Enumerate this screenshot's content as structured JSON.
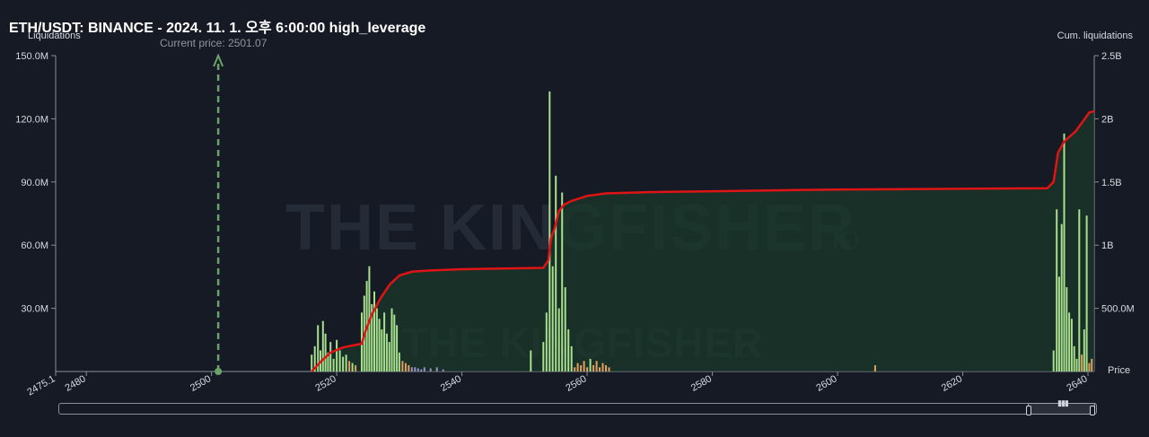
{
  "title": "ETH/USDT: BINANCE - 2024. 11. 1. 오후 6:00:00 high_leverage",
  "y_left_label": "Liquidations",
  "y_right_label": "Cum. liquidations",
  "x_axis_label": "Price",
  "current_price_text": "Current price: 2501.07",
  "watermark_text": "THE KINGFISHER",
  "watermark_suffix": ".IO",
  "colors": {
    "background": "#161a25",
    "bar_green": "#a8e08e",
    "bar_orange": "#e0a060",
    "bar_purple": "#9b8fc9",
    "cumulative_line": "#e01414",
    "area_fill": "#1a3a28",
    "price_marker": "#6aa36a"
  },
  "chart_data": {
    "type": "bar",
    "x_range": [
      2475.1,
      2641
    ],
    "x_ticks": [
      "2475.1",
      "2480",
      "2500",
      "2520",
      "2540",
      "2560",
      "2580",
      "2600",
      "2620",
      "2640"
    ],
    "left_axis": {
      "ylim": [
        0,
        150000000
      ],
      "ticks": [
        "150.0M",
        "120.0M",
        "90.0M",
        "60.0M",
        "30.0M"
      ]
    },
    "right_axis": {
      "ylim": [
        0,
        2500000000
      ],
      "ticks": [
        "2.5B",
        "2B",
        "1.5B",
        "1B",
        "500.0M"
      ]
    },
    "current_price": 2501.07,
    "bars": [
      {
        "x": 2516.0,
        "v": 8.0,
        "c": "g"
      },
      {
        "x": 2516.5,
        "v": 12.0,
        "c": "g"
      },
      {
        "x": 2517.0,
        "v": 22.0,
        "c": "g"
      },
      {
        "x": 2517.4,
        "v": 10.0,
        "c": "g"
      },
      {
        "x": 2517.8,
        "v": 24.0,
        "c": "g"
      },
      {
        "x": 2518.2,
        "v": 18.0,
        "c": "g"
      },
      {
        "x": 2518.6,
        "v": 9.0,
        "c": "g"
      },
      {
        "x": 2519.0,
        "v": 14.0,
        "c": "g"
      },
      {
        "x": 2519.5,
        "v": 6.0,
        "c": "g"
      },
      {
        "x": 2520.0,
        "v": 15.0,
        "c": "g"
      },
      {
        "x": 2520.5,
        "v": 10.0,
        "c": "g"
      },
      {
        "x": 2521.0,
        "v": 7.0,
        "c": "g"
      },
      {
        "x": 2521.5,
        "v": 8.0,
        "c": "g"
      },
      {
        "x": 2522.0,
        "v": 5.0,
        "c": "o"
      },
      {
        "x": 2522.5,
        "v": 4.0,
        "c": "g"
      },
      {
        "x": 2523.0,
        "v": 3.0,
        "c": "o"
      },
      {
        "x": 2524.0,
        "v": 28.0,
        "c": "g"
      },
      {
        "x": 2524.4,
        "v": 36.0,
        "c": "g"
      },
      {
        "x": 2524.8,
        "v": 43.0,
        "c": "g"
      },
      {
        "x": 2525.2,
        "v": 50.0,
        "c": "g"
      },
      {
        "x": 2525.6,
        "v": 32.0,
        "c": "g"
      },
      {
        "x": 2526.0,
        "v": 38.0,
        "c": "g"
      },
      {
        "x": 2526.4,
        "v": 30.0,
        "c": "g"
      },
      {
        "x": 2526.8,
        "v": 25.0,
        "c": "g"
      },
      {
        "x": 2527.2,
        "v": 20.0,
        "c": "g"
      },
      {
        "x": 2527.6,
        "v": 28.0,
        "c": "g"
      },
      {
        "x": 2528.0,
        "v": 18.0,
        "c": "g"
      },
      {
        "x": 2528.4,
        "v": 14.0,
        "c": "g"
      },
      {
        "x": 2528.8,
        "v": 30.0,
        "c": "g"
      },
      {
        "x": 2529.2,
        "v": 27.0,
        "c": "g"
      },
      {
        "x": 2529.6,
        "v": 22.0,
        "c": "g"
      },
      {
        "x": 2530.0,
        "v": 9.0,
        "c": "g"
      },
      {
        "x": 2530.5,
        "v": 5.0,
        "c": "o"
      },
      {
        "x": 2531.0,
        "v": 4.0,
        "c": "o"
      },
      {
        "x": 2531.5,
        "v": 3.0,
        "c": "o"
      },
      {
        "x": 2532.0,
        "v": 2.0,
        "c": "p"
      },
      {
        "x": 2532.5,
        "v": 2.0,
        "c": "p"
      },
      {
        "x": 2533.0,
        "v": 1.5,
        "c": "p"
      },
      {
        "x": 2533.5,
        "v": 1.0,
        "c": "p"
      },
      {
        "x": 2534.0,
        "v": 2.0,
        "c": "p"
      },
      {
        "x": 2535.0,
        "v": 1.5,
        "c": "p"
      },
      {
        "x": 2536.0,
        "v": 2.0,
        "c": "p"
      },
      {
        "x": 2537.0,
        "v": 1.0,
        "c": "p"
      },
      {
        "x": 2551.0,
        "v": 10.0,
        "c": "g"
      },
      {
        "x": 2553.0,
        "v": 14.0,
        "c": "g"
      },
      {
        "x": 2553.5,
        "v": 28.0,
        "c": "g"
      },
      {
        "x": 2554.0,
        "v": 133.0,
        "c": "g"
      },
      {
        "x": 2554.5,
        "v": 50.0,
        "c": "g"
      },
      {
        "x": 2555.0,
        "v": 93.0,
        "c": "g"
      },
      {
        "x": 2555.5,
        "v": 30.0,
        "c": "g"
      },
      {
        "x": 2556.0,
        "v": 85.0,
        "c": "g"
      },
      {
        "x": 2556.5,
        "v": 40.0,
        "c": "g"
      },
      {
        "x": 2557.0,
        "v": 20.0,
        "c": "g"
      },
      {
        "x": 2557.5,
        "v": 12.0,
        "c": "g"
      },
      {
        "x": 2558.0,
        "v": 2.0,
        "c": "o"
      },
      {
        "x": 2558.5,
        "v": 4.0,
        "c": "o"
      },
      {
        "x": 2559.0,
        "v": 3.0,
        "c": "o"
      },
      {
        "x": 2559.5,
        "v": 5.0,
        "c": "o"
      },
      {
        "x": 2560.0,
        "v": 2.0,
        "c": "o"
      },
      {
        "x": 2560.5,
        "v": 6.0,
        "c": "g"
      },
      {
        "x": 2561.0,
        "v": 3.0,
        "c": "o"
      },
      {
        "x": 2561.5,
        "v": 5.0,
        "c": "o"
      },
      {
        "x": 2562.0,
        "v": 2.0,
        "c": "o"
      },
      {
        "x": 2562.5,
        "v": 4.0,
        "c": "o"
      },
      {
        "x": 2563.0,
        "v": 3.0,
        "c": "o"
      },
      {
        "x": 2563.5,
        "v": 2.0,
        "c": "o"
      },
      {
        "x": 2606.0,
        "v": 3.0,
        "c": "o"
      },
      {
        "x": 2634.5,
        "v": 10.0,
        "c": "g"
      },
      {
        "x": 2635.0,
        "v": 77.0,
        "c": "g"
      },
      {
        "x": 2635.4,
        "v": 45.0,
        "c": "g"
      },
      {
        "x": 2635.8,
        "v": 70.0,
        "c": "g"
      },
      {
        "x": 2636.2,
        "v": 113.0,
        "c": "g"
      },
      {
        "x": 2636.6,
        "v": 40.0,
        "c": "g"
      },
      {
        "x": 2637.0,
        "v": 28.0,
        "c": "g"
      },
      {
        "x": 2637.4,
        "v": 25.0,
        "c": "g"
      },
      {
        "x": 2637.8,
        "v": 12.0,
        "c": "g"
      },
      {
        "x": 2638.2,
        "v": 6.0,
        "c": "g"
      },
      {
        "x": 2638.6,
        "v": 77.0,
        "c": "g"
      },
      {
        "x": 2639.0,
        "v": 8.0,
        "c": "o"
      },
      {
        "x": 2639.4,
        "v": 20.0,
        "c": "g"
      },
      {
        "x": 2639.8,
        "v": 74.0,
        "c": "g"
      },
      {
        "x": 2640.2,
        "v": 4.0,
        "c": "o"
      },
      {
        "x": 2640.6,
        "v": 6.0,
        "c": "o"
      }
    ],
    "cumulative": [
      [
        2516,
        0
      ],
      [
        2517.5,
        0.08
      ],
      [
        2519,
        0.15
      ],
      [
        2521,
        0.19
      ],
      [
        2523,
        0.21
      ],
      [
        2524,
        0.22
      ],
      [
        2524.6,
        0.32
      ],
      [
        2525.6,
        0.45
      ],
      [
        2527,
        0.58
      ],
      [
        2528.5,
        0.69
      ],
      [
        2530,
        0.76
      ],
      [
        2532,
        0.79
      ],
      [
        2535,
        0.8
      ],
      [
        2540,
        0.81
      ],
      [
        2553,
        0.82
      ],
      [
        2553.8,
        0.88
      ],
      [
        2554.2,
        1.05
      ],
      [
        2554.8,
        1.13
      ],
      [
        2555.5,
        1.27
      ],
      [
        2556.3,
        1.32
      ],
      [
        2557.5,
        1.35
      ],
      [
        2560,
        1.39
      ],
      [
        2563,
        1.41
      ],
      [
        2570,
        1.42
      ],
      [
        2600,
        1.44
      ],
      [
        2633.5,
        1.45
      ],
      [
        2634.5,
        1.5
      ],
      [
        2635.2,
        1.73
      ],
      [
        2636.2,
        1.82
      ],
      [
        2638,
        1.9
      ],
      [
        2639.5,
        2.0
      ],
      [
        2640.2,
        2.05
      ],
      [
        2641,
        2.06
      ]
    ]
  }
}
